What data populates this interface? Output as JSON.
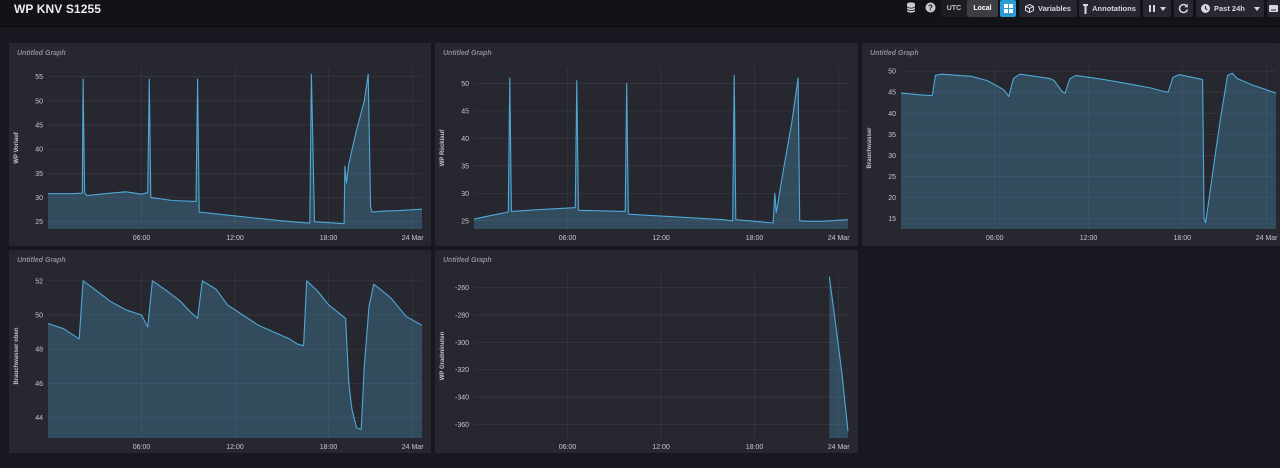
{
  "header": {
    "title": "WP KNV S1255",
    "timezone": {
      "utc_label": "UTC",
      "local_label": "Local",
      "selected": "Local"
    },
    "variables_label": "Variables",
    "annotations_label": "Annotations",
    "time_range_label": "Past 24h",
    "icons": [
      "database-icon",
      "help-icon",
      "dashboard-grid-icon",
      "variables-cube-icon",
      "annotation-pin-icon",
      "pause-icon",
      "refresh-icon",
      "clock-icon",
      "caret-down-icon",
      "keyboard-icon"
    ],
    "accent_color": "#2d9bd8"
  },
  "panels": [
    {
      "title": "Untitled Graph",
      "ylabel": "WP Vorlauf"
    },
    {
      "title": "Untitled Graph",
      "ylabel": "WP Rücklauf"
    },
    {
      "title": "Untitled Graph",
      "ylabel": "Brauchwasser"
    },
    {
      "title": "Untitled Graph",
      "ylabel": "Brauchwasser oben"
    },
    {
      "title": "Untitled Graph",
      "ylabel": "WP Gradminuten"
    }
  ],
  "chart_data": [
    {
      "type": "area",
      "title": "Untitled Graph",
      "ylabel": "WP Vorlauf",
      "x_ticks": [
        "06:00",
        "12:00",
        "18:00",
        "24 Mar"
      ],
      "y_ticks": [
        25,
        30,
        35,
        40,
        45,
        50,
        55
      ],
      "ylim": [
        23.5,
        57
      ],
      "grid": true,
      "color": "#4fa8d8",
      "series": [
        {
          "points": [
            [
              0,
              30.8
            ],
            [
              1.5,
              30.8
            ],
            [
              2.2,
              30.9
            ],
            [
              2.25,
              54.5
            ],
            [
              2.35,
              31
            ],
            [
              2.5,
              30.4
            ],
            [
              4,
              30.9
            ],
            [
              5,
              31.2
            ],
            [
              6,
              30.7
            ],
            [
              6.4,
              31
            ],
            [
              6.5,
              54.5
            ],
            [
              6.6,
              30
            ],
            [
              8,
              29.4
            ],
            [
              9.5,
              29.2
            ],
            [
              9.6,
              54.5
            ],
            [
              9.7,
              27
            ],
            [
              12,
              26.2
            ],
            [
              15,
              25.2
            ],
            [
              16.8,
              24.7
            ],
            [
              16.9,
              55.5
            ],
            [
              17.1,
              25
            ],
            [
              19,
              24.6
            ],
            [
              19.05,
              36.5
            ],
            [
              19.15,
              33
            ],
            [
              19.3,
              37
            ],
            [
              19.8,
              44
            ],
            [
              20.3,
              50
            ],
            [
              20.55,
              55.5
            ],
            [
              20.7,
              28
            ],
            [
              20.8,
              27
            ],
            [
              21.5,
              27.2
            ],
            [
              22.5,
              27.3
            ],
            [
              24,
              27.6
            ]
          ]
        }
      ]
    },
    {
      "type": "area",
      "title": "Untitled Graph",
      "ylabel": "WP Rücklauf",
      "x_ticks": [
        "06:00",
        "12:00",
        "18:00",
        "24 Mar"
      ],
      "y_ticks": [
        25,
        30,
        35,
        40,
        45,
        50
      ],
      "ylim": [
        23.5,
        53
      ],
      "grid": true,
      "color": "#4fa8d8",
      "series": [
        {
          "points": [
            [
              0,
              25.3
            ],
            [
              1.5,
              26.2
            ],
            [
              2.2,
              26.6
            ],
            [
              2.3,
              51
            ],
            [
              2.4,
              26.7
            ],
            [
              4,
              27
            ],
            [
              6,
              27.3
            ],
            [
              6.5,
              27.4
            ],
            [
              6.6,
              50.5
            ],
            [
              6.7,
              26.9
            ],
            [
              9.7,
              26.7
            ],
            [
              9.8,
              50
            ],
            [
              9.9,
              26.2
            ],
            [
              13,
              25.7
            ],
            [
              16,
              25.2
            ],
            [
              16.6,
              25
            ],
            [
              16.7,
              51.5
            ],
            [
              16.8,
              25.2
            ],
            [
              19.2,
              24.6
            ],
            [
              19.3,
              30
            ],
            [
              19.4,
              26.5
            ],
            [
              19.9,
              35
            ],
            [
              20.4,
              43
            ],
            [
              20.8,
              51
            ],
            [
              20.9,
              25
            ],
            [
              21.5,
              24.9
            ],
            [
              22.3,
              24.9
            ],
            [
              24,
              25.2
            ]
          ]
        }
      ]
    },
    {
      "type": "area",
      "title": "Untitled Graph",
      "ylabel": "Brauchwasser",
      "x_ticks": [
        "06:00",
        "12:00",
        "18:00",
        "24 Mar"
      ],
      "y_ticks": [
        15,
        20,
        25,
        30,
        35,
        40,
        45,
        50
      ],
      "ylim": [
        12.5,
        51
      ],
      "grid": true,
      "color": "#4fa8d8",
      "series": [
        {
          "points": [
            [
              0,
              44.8
            ],
            [
              1.5,
              44.3
            ],
            [
              2,
              44.2
            ],
            [
              2.2,
              49
            ],
            [
              2.6,
              49.3
            ],
            [
              4.5,
              48.8
            ],
            [
              5.5,
              47.8
            ],
            [
              6.3,
              46.2
            ],
            [
              6.6,
              45.5
            ],
            [
              6.9,
              44
            ],
            [
              7.2,
              48.3
            ],
            [
              7.6,
              49.3
            ],
            [
              9.5,
              48.3
            ],
            [
              9.8,
              47.8
            ],
            [
              10.3,
              45.2
            ],
            [
              10.5,
              44.8
            ],
            [
              10.8,
              48.2
            ],
            [
              11.2,
              49
            ],
            [
              13,
              48
            ],
            [
              15,
              46.7
            ],
            [
              16,
              46
            ],
            [
              16.7,
              45.3
            ],
            [
              17.1,
              45
            ],
            [
              17.4,
              48.5
            ],
            [
              17.8,
              49.2
            ],
            [
              19.3,
              48
            ],
            [
              19.4,
              15
            ],
            [
              19.5,
              14
            ],
            [
              19.8,
              22
            ],
            [
              20.1,
              30
            ],
            [
              20.5,
              40
            ],
            [
              20.9,
              49
            ],
            [
              21.2,
              49.5
            ],
            [
              21.5,
              48.3
            ],
            [
              22.5,
              46.7
            ],
            [
              24,
              44.8
            ]
          ]
        }
      ]
    },
    {
      "type": "area",
      "title": "Untitled Graph",
      "ylabel": "Brauchwasser oben",
      "x_ticks": [
        "06:00",
        "12:00",
        "18:00",
        "24 Mar"
      ],
      "y_ticks": [
        44,
        46,
        48,
        50,
        52
      ],
      "ylim": [
        42.8,
        52.4
      ],
      "grid": true,
      "color": "#4fa8d8",
      "series": [
        {
          "points": [
            [
              0,
              49.5
            ],
            [
              1,
              49.2
            ],
            [
              2,
              48.6
            ],
            [
              2.25,
              52
            ],
            [
              3,
              51.5
            ],
            [
              4,
              50.8
            ],
            [
              5,
              50.3
            ],
            [
              6,
              50
            ],
            [
              6.4,
              49.3
            ],
            [
              6.7,
              52
            ],
            [
              7.5,
              51.5
            ],
            [
              8.5,
              50.8
            ],
            [
              9,
              50.3
            ],
            [
              9.6,
              49.8
            ],
            [
              9.9,
              52
            ],
            [
              10.8,
              51.5
            ],
            [
              11.5,
              50.6
            ],
            [
              12.5,
              50
            ],
            [
              13.5,
              49.4
            ],
            [
              14.5,
              49
            ],
            [
              15.5,
              48.6
            ],
            [
              16,
              48.3
            ],
            [
              16.4,
              48.2
            ],
            [
              16.6,
              52
            ],
            [
              17.3,
              51.4
            ],
            [
              18,
              50.6
            ],
            [
              19.1,
              49.8
            ],
            [
              19.3,
              46
            ],
            [
              19.5,
              44.5
            ],
            [
              19.8,
              43.4
            ],
            [
              20.1,
              43.3
            ],
            [
              20.3,
              47
            ],
            [
              20.6,
              50.5
            ],
            [
              20.9,
              51.8
            ],
            [
              21.2,
              51.6
            ],
            [
              22,
              51
            ],
            [
              23,
              49.9
            ],
            [
              24,
              49.4
            ]
          ]
        }
      ]
    },
    {
      "type": "area",
      "title": "Untitled Graph",
      "ylabel": "WP Gradminuten",
      "x_ticks": [
        "06:00",
        "12:00",
        "18:00",
        "24 Mar"
      ],
      "y_ticks": [
        -260,
        -280,
        -300,
        -320,
        -340,
        -360
      ],
      "ylim": [
        -370,
        -250
      ],
      "grid": true,
      "color": "#4fa8d8",
      "series": [
        {
          "points": [
            [
              22.8,
              -252
            ],
            [
              23.2,
              -286
            ],
            [
              23.6,
              -322
            ],
            [
              24,
              -365
            ]
          ]
        }
      ]
    }
  ]
}
